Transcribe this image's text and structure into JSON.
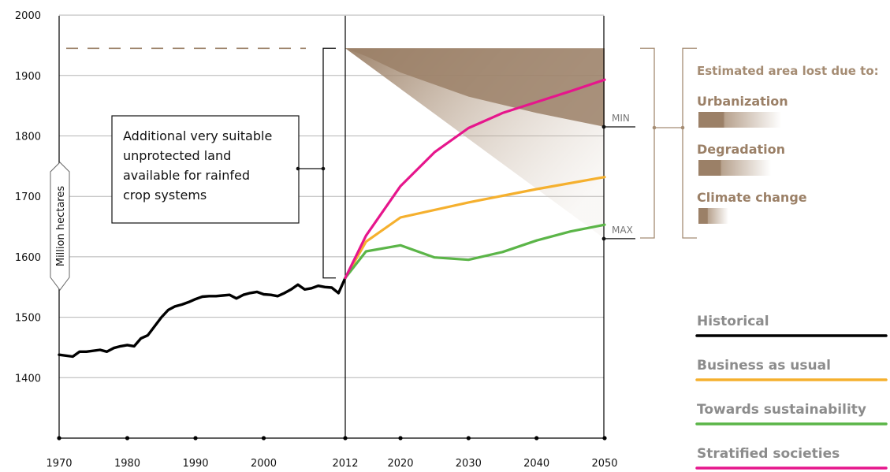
{
  "chart_data": {
    "type": "line",
    "ylabel": "Million hectares",
    "ylim": [
      1300,
      2000
    ],
    "y_ticks": [
      1400,
      1500,
      1600,
      1700,
      1800,
      1900,
      2000
    ],
    "x_ticks": [
      1970,
      1980,
      1990,
      2000,
      2012,
      2020,
      2030,
      2040,
      2050
    ],
    "grid": "horizontal",
    "series": [
      {
        "name": "Historical",
        "color": "#000000",
        "x": [
          1970,
          1972,
          1973,
          1974,
          1976,
          1977,
          1978,
          1979,
          1980,
          1981,
          1982,
          1983,
          1984,
          1985,
          1986,
          1987,
          1988,
          1989,
          1990,
          1991,
          1992,
          1993,
          1994,
          1995,
          1996,
          1997,
          1998,
          1999,
          2000,
          2001,
          2002,
          2003,
          2004,
          2005,
          2006,
          2007,
          2008,
          2009,
          2010,
          2011,
          2012
        ],
        "values": [
          1438,
          1435,
          1443,
          1443,
          1446,
          1443,
          1449,
          1452,
          1454,
          1452,
          1465,
          1470,
          1485,
          1500,
          1512,
          1518,
          1521,
          1525,
          1530,
          1534,
          1535,
          1535,
          1536,
          1537,
          1531,
          1537,
          1540,
          1542,
          1538,
          1537,
          1535,
          1540,
          1546,
          1554,
          1546,
          1548,
          1552,
          1550,
          1549,
          1540,
          1565
        ]
      },
      {
        "name": "Business as usual",
        "color": "#f5b02e",
        "x": [
          2012,
          2015,
          2020,
          2030,
          2040,
          2050
        ],
        "values": [
          1565,
          1625,
          1665,
          1690,
          1712,
          1732
        ]
      },
      {
        "name": "Towards sustainability",
        "color": "#5bb548",
        "x": [
          2012,
          2015,
          2020,
          2025,
          2030,
          2035,
          2040,
          2045,
          2050
        ],
        "values": [
          1565,
          1609,
          1619,
          1599,
          1595,
          1608,
          1627,
          1642,
          1653
        ]
      },
      {
        "name": "Stratified societies",
        "color": "#e6168c",
        "x": [
          2012,
          2015,
          2020,
          2025,
          2030,
          2035,
          2040,
          2045,
          2050
        ],
        "values": [
          1565,
          1635,
          1717,
          1773,
          1813,
          1838,
          1856,
          1874,
          1893
        ]
      }
    ],
    "reference_level": 1945,
    "loss_band": {
      "top": 1945,
      "min_x": [
        2012,
        2015,
        2020,
        2030,
        2040,
        2050
      ],
      "min_values": [
        1945,
        1932,
        1905,
        1865,
        1838,
        1815
      ],
      "max_x": [
        2012,
        2050
      ],
      "max_values": [
        1945,
        1630
      ]
    },
    "annotation": "Additional very suitable unprotected land available for rainfed crop systems",
    "min_label": "MIN",
    "max_label": "MAX",
    "lost_title": "Estimated area lost due to:",
    "lost_items": [
      "Urbanization",
      "Degradation",
      "Climate change"
    ],
    "legend_position": "bottom-right",
    "legend": [
      "Historical",
      "Business as usual",
      "Towards sustainability",
      "Stratified societies"
    ]
  },
  "colors": {
    "band": "#9b8067",
    "axis": "#000000",
    "grid": "#b5b5b5",
    "dash": "#9b8067"
  }
}
